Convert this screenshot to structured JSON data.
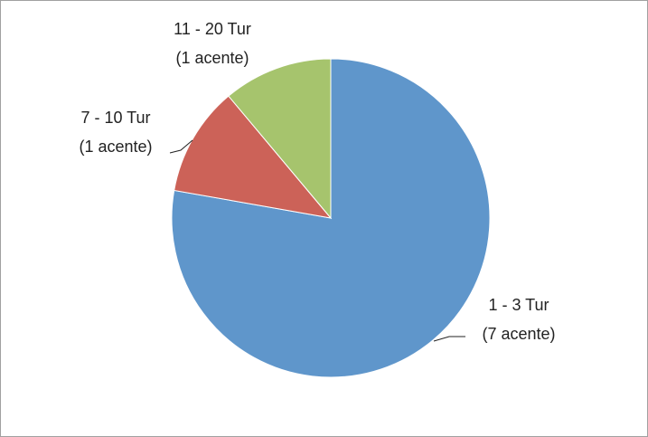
{
  "chart_data": {
    "type": "pie",
    "categories": [
      "1 - 3 Tur",
      "7 - 10 Tur",
      "11 - 20 Tur"
    ],
    "values": [
      7,
      1,
      1
    ],
    "value_labels": [
      "(7 acente)",
      "(1 acente)",
      "(1 acente)"
    ],
    "colors": [
      "#5f96cb",
      "#cc6258",
      "#a6c46d"
    ]
  }
}
